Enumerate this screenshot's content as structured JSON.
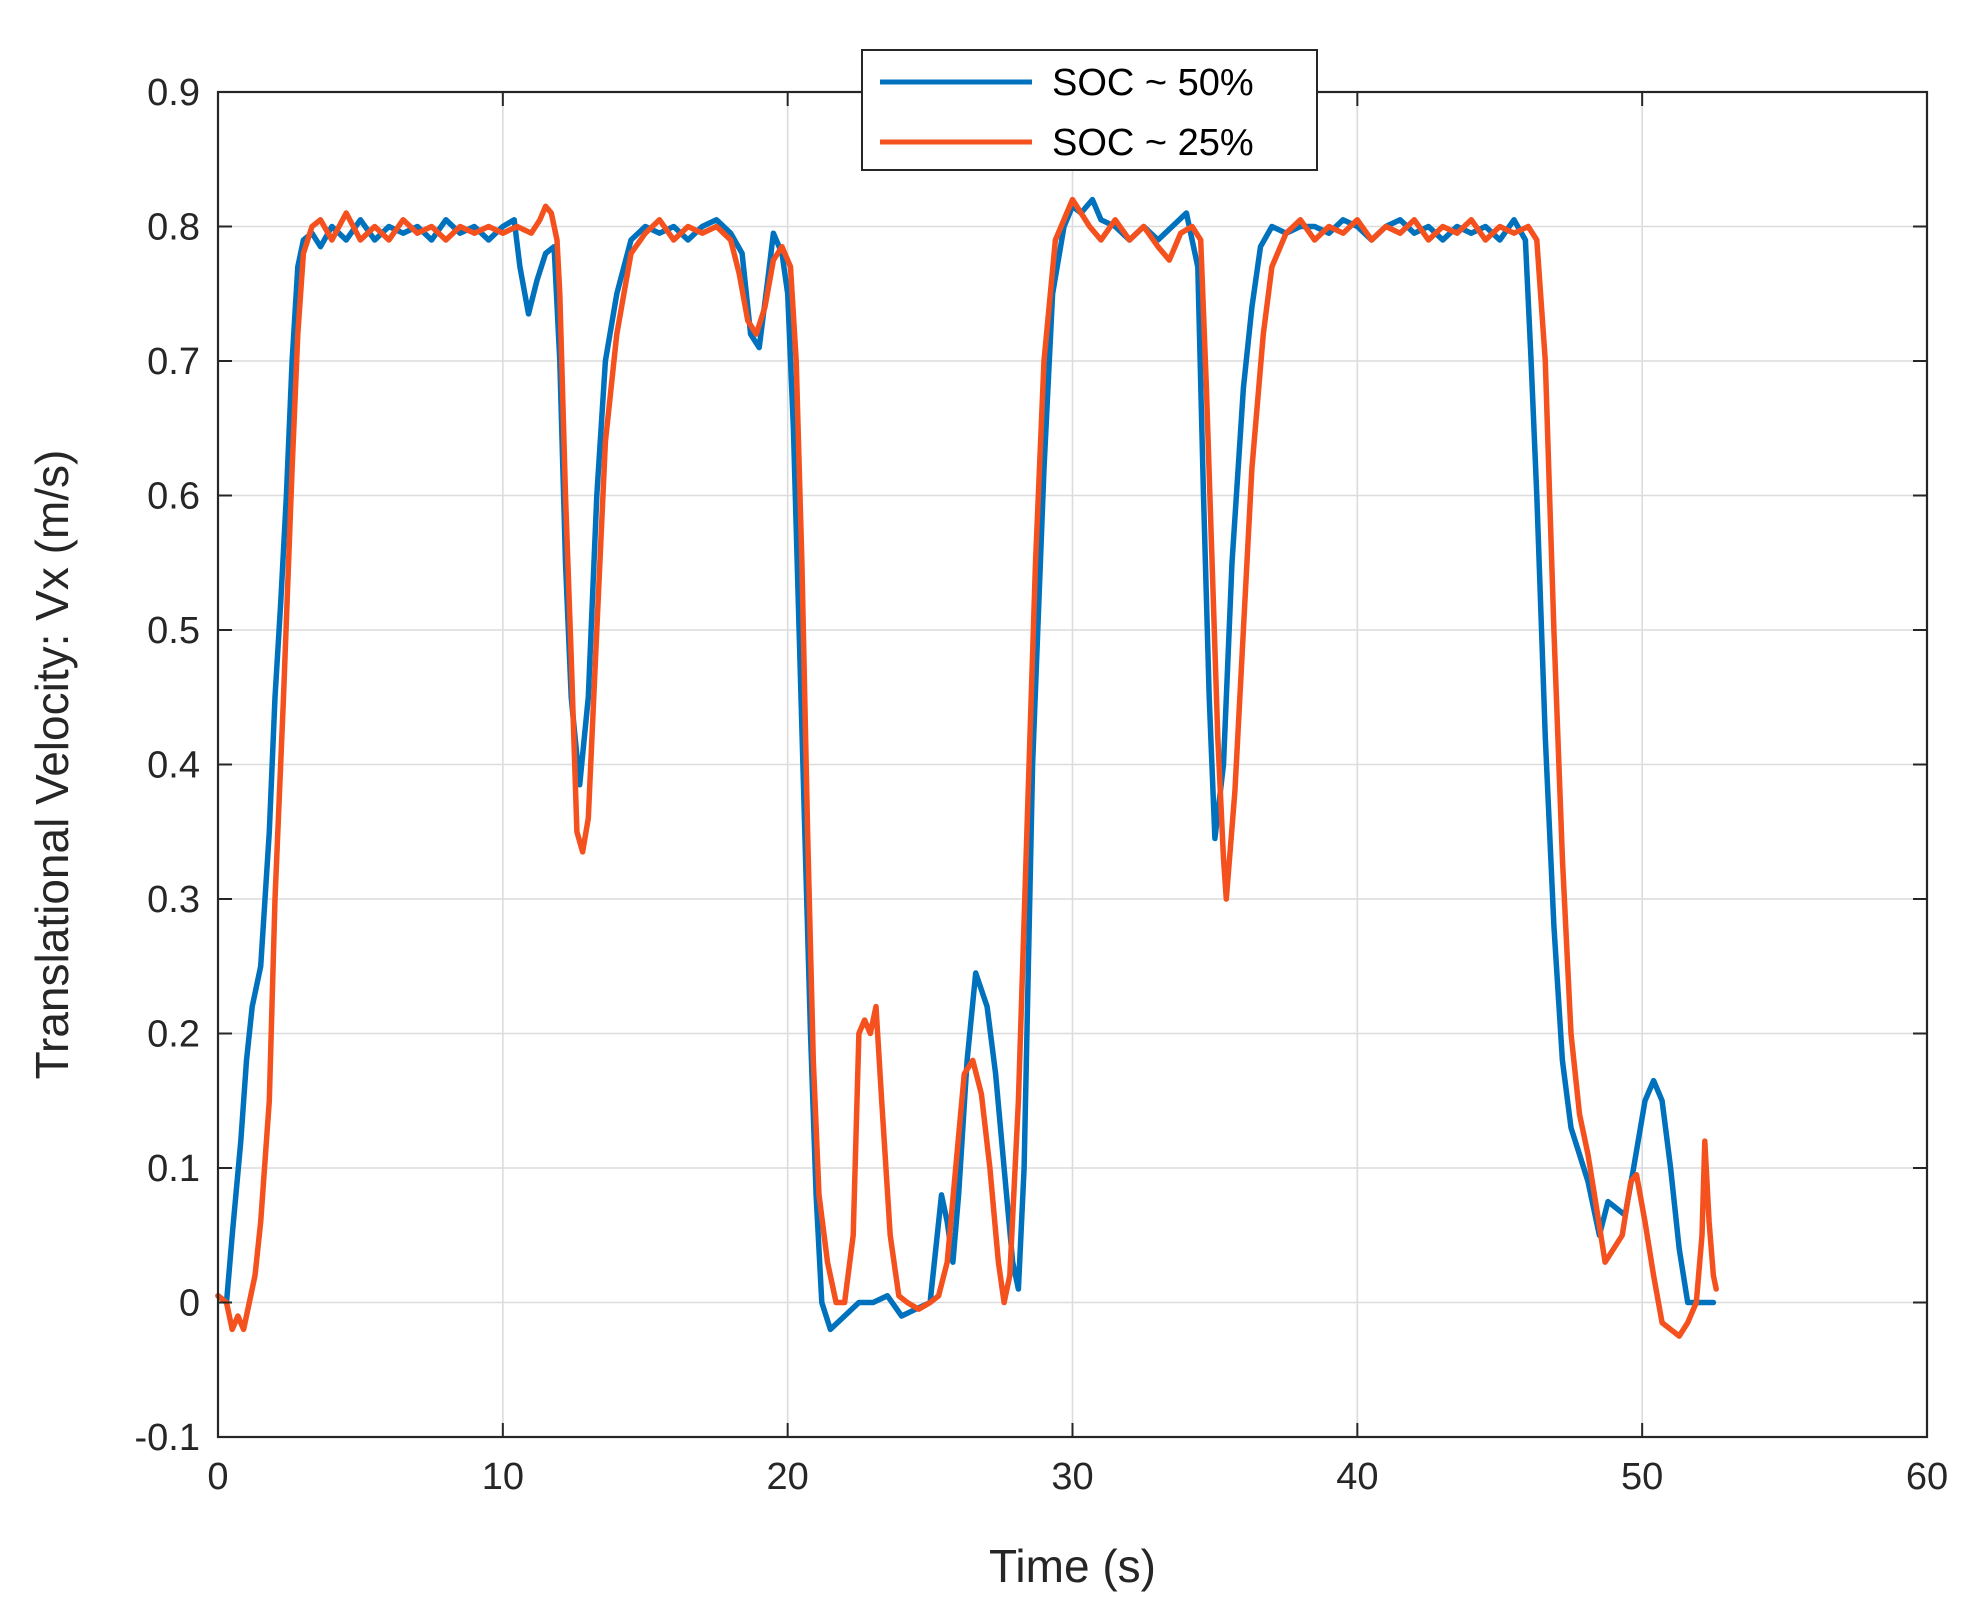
{
  "chart_data": {
    "type": "line",
    "title": "",
    "xlabel": "Time (s)",
    "ylabel": "Translational Velocity: Vx (m/s)",
    "xlim": [
      0,
      60
    ],
    "ylim": [
      -0.1,
      0.9
    ],
    "xticks": [
      0,
      10,
      20,
      30,
      40,
      50,
      60
    ],
    "yticks": [
      -0.1,
      0,
      0.1,
      0.2,
      0.3,
      0.4,
      0.5,
      0.6,
      0.7,
      0.8,
      0.9
    ],
    "xtick_labels": [
      "0",
      "10",
      "20",
      "30",
      "40",
      "50",
      "60"
    ],
    "ytick_labels": [
      "-0.1",
      "0",
      "0.1",
      "0.2",
      "0.3",
      "0.4",
      "0.5",
      "0.6",
      "0.7",
      "0.8",
      "0.9"
    ],
    "grid": true,
    "legend_position": "top-center",
    "series": [
      {
        "name": "SOC ~ 50%",
        "color": "#0072BD",
        "points": [
          [
            0.0,
            0.005
          ],
          [
            0.3,
            0.0
          ],
          [
            0.5,
            0.05
          ],
          [
            0.8,
            0.12
          ],
          [
            1.0,
            0.18
          ],
          [
            1.2,
            0.22
          ],
          [
            1.5,
            0.25
          ],
          [
            1.8,
            0.35
          ],
          [
            2.0,
            0.45
          ],
          [
            2.2,
            0.52
          ],
          [
            2.4,
            0.6
          ],
          [
            2.6,
            0.7
          ],
          [
            2.8,
            0.77
          ],
          [
            3.0,
            0.79
          ],
          [
            3.3,
            0.795
          ],
          [
            3.6,
            0.785
          ],
          [
            4.0,
            0.8
          ],
          [
            4.5,
            0.79
          ],
          [
            5.0,
            0.805
          ],
          [
            5.5,
            0.79
          ],
          [
            6.0,
            0.8
          ],
          [
            6.5,
            0.795
          ],
          [
            7.0,
            0.8
          ],
          [
            7.5,
            0.79
          ],
          [
            8.0,
            0.805
          ],
          [
            8.5,
            0.795
          ],
          [
            9.0,
            0.8
          ],
          [
            9.5,
            0.79
          ],
          [
            10.0,
            0.8
          ],
          [
            10.4,
            0.805
          ],
          [
            10.6,
            0.77
          ],
          [
            10.9,
            0.735
          ],
          [
            11.2,
            0.76
          ],
          [
            11.5,
            0.78
          ],
          [
            11.8,
            0.785
          ],
          [
            12.0,
            0.7
          ],
          [
            12.2,
            0.55
          ],
          [
            12.4,
            0.45
          ],
          [
            12.7,
            0.385
          ],
          [
            13.0,
            0.45
          ],
          [
            13.3,
            0.6
          ],
          [
            13.6,
            0.7
          ],
          [
            14.0,
            0.75
          ],
          [
            14.5,
            0.79
          ],
          [
            15.0,
            0.8
          ],
          [
            15.5,
            0.795
          ],
          [
            16.0,
            0.8
          ],
          [
            16.5,
            0.79
          ],
          [
            17.0,
            0.8
          ],
          [
            17.5,
            0.805
          ],
          [
            18.0,
            0.795
          ],
          [
            18.4,
            0.78
          ],
          [
            18.7,
            0.72
          ],
          [
            19.0,
            0.71
          ],
          [
            19.3,
            0.76
          ],
          [
            19.5,
            0.795
          ],
          [
            19.8,
            0.78
          ],
          [
            20.0,
            0.75
          ],
          [
            20.2,
            0.65
          ],
          [
            20.4,
            0.5
          ],
          [
            20.6,
            0.35
          ],
          [
            20.8,
            0.2
          ],
          [
            21.0,
            0.08
          ],
          [
            21.2,
            0.0
          ],
          [
            21.5,
            -0.02
          ],
          [
            22.0,
            -0.01
          ],
          [
            22.5,
            0.0
          ],
          [
            23.0,
            0.0
          ],
          [
            23.5,
            0.005
          ],
          [
            24.0,
            -0.01
          ],
          [
            24.5,
            -0.005
          ],
          [
            25.0,
            0.0
          ],
          [
            25.2,
            0.04
          ],
          [
            25.4,
            0.08
          ],
          [
            25.6,
            0.06
          ],
          [
            25.8,
            0.03
          ],
          [
            26.0,
            0.08
          ],
          [
            26.3,
            0.18
          ],
          [
            26.6,
            0.245
          ],
          [
            27.0,
            0.22
          ],
          [
            27.3,
            0.17
          ],
          [
            27.6,
            0.1
          ],
          [
            27.9,
            0.03
          ],
          [
            28.1,
            0.01
          ],
          [
            28.3,
            0.1
          ],
          [
            28.6,
            0.4
          ],
          [
            29.0,
            0.62
          ],
          [
            29.3,
            0.75
          ],
          [
            29.7,
            0.8
          ],
          [
            30.0,
            0.815
          ],
          [
            30.3,
            0.81
          ],
          [
            30.7,
            0.82
          ],
          [
            31.0,
            0.805
          ],
          [
            31.5,
            0.8
          ],
          [
            32.0,
            0.79
          ],
          [
            32.5,
            0.8
          ],
          [
            33.0,
            0.79
          ],
          [
            33.5,
            0.8
          ],
          [
            34.0,
            0.81
          ],
          [
            34.4,
            0.77
          ],
          [
            34.6,
            0.6
          ],
          [
            34.8,
            0.45
          ],
          [
            35.0,
            0.345
          ],
          [
            35.3,
            0.4
          ],
          [
            35.6,
            0.55
          ],
          [
            36.0,
            0.68
          ],
          [
            36.3,
            0.74
          ],
          [
            36.6,
            0.785
          ],
          [
            37.0,
            0.8
          ],
          [
            37.5,
            0.795
          ],
          [
            38.0,
            0.8
          ],
          [
            38.5,
            0.8
          ],
          [
            39.0,
            0.795
          ],
          [
            39.5,
            0.805
          ],
          [
            40.0,
            0.8
          ],
          [
            40.5,
            0.79
          ],
          [
            41.0,
            0.8
          ],
          [
            41.5,
            0.805
          ],
          [
            42.0,
            0.795
          ],
          [
            42.5,
            0.8
          ],
          [
            43.0,
            0.79
          ],
          [
            43.5,
            0.8
          ],
          [
            44.0,
            0.795
          ],
          [
            44.5,
            0.8
          ],
          [
            45.0,
            0.79
          ],
          [
            45.5,
            0.805
          ],
          [
            45.9,
            0.79
          ],
          [
            46.1,
            0.7
          ],
          [
            46.3,
            0.6
          ],
          [
            46.6,
            0.42
          ],
          [
            46.9,
            0.28
          ],
          [
            47.2,
            0.18
          ],
          [
            47.5,
            0.13
          ],
          [
            47.8,
            0.11
          ],
          [
            48.1,
            0.09
          ],
          [
            48.5,
            0.05
          ],
          [
            48.8,
            0.075
          ],
          [
            49.1,
            0.07
          ],
          [
            49.4,
            0.065
          ],
          [
            49.7,
            0.1
          ],
          [
            50.1,
            0.15
          ],
          [
            50.4,
            0.165
          ],
          [
            50.7,
            0.15
          ],
          [
            51.0,
            0.1
          ],
          [
            51.3,
            0.04
          ],
          [
            51.6,
            0.0
          ],
          [
            51.9,
            0.0
          ],
          [
            52.4,
            0.0
          ],
          [
            52.5,
            0.0
          ]
        ]
      },
      {
        "name": "SOC ~ 25%",
        "color": "#F4511E",
        "points": [
          [
            0.0,
            0.005
          ],
          [
            0.3,
            0.0
          ],
          [
            0.5,
            -0.02
          ],
          [
            0.7,
            -0.01
          ],
          [
            0.9,
            -0.02
          ],
          [
            1.1,
            0.0
          ],
          [
            1.3,
            0.02
          ],
          [
            1.5,
            0.06
          ],
          [
            1.8,
            0.15
          ],
          [
            2.0,
            0.3
          ],
          [
            2.3,
            0.45
          ],
          [
            2.6,
            0.62
          ],
          [
            2.8,
            0.72
          ],
          [
            3.0,
            0.78
          ],
          [
            3.3,
            0.8
          ],
          [
            3.6,
            0.805
          ],
          [
            4.0,
            0.79
          ],
          [
            4.5,
            0.81
          ],
          [
            5.0,
            0.79
          ],
          [
            5.5,
            0.8
          ],
          [
            6.0,
            0.79
          ],
          [
            6.5,
            0.805
          ],
          [
            7.0,
            0.795
          ],
          [
            7.5,
            0.8
          ],
          [
            8.0,
            0.79
          ],
          [
            8.5,
            0.8
          ],
          [
            9.0,
            0.795
          ],
          [
            9.5,
            0.8
          ],
          [
            10.0,
            0.795
          ],
          [
            10.5,
            0.8
          ],
          [
            11.0,
            0.795
          ],
          [
            11.3,
            0.805
          ],
          [
            11.5,
            0.815
          ],
          [
            11.7,
            0.81
          ],
          [
            11.9,
            0.79
          ],
          [
            12.0,
            0.75
          ],
          [
            12.2,
            0.6
          ],
          [
            12.4,
            0.48
          ],
          [
            12.6,
            0.35
          ],
          [
            12.8,
            0.335
          ],
          [
            13.0,
            0.36
          ],
          [
            13.3,
            0.5
          ],
          [
            13.6,
            0.64
          ],
          [
            14.0,
            0.72
          ],
          [
            14.5,
            0.78
          ],
          [
            15.0,
            0.795
          ],
          [
            15.5,
            0.805
          ],
          [
            16.0,
            0.79
          ],
          [
            16.5,
            0.8
          ],
          [
            17.0,
            0.795
          ],
          [
            17.5,
            0.8
          ],
          [
            18.0,
            0.79
          ],
          [
            18.3,
            0.765
          ],
          [
            18.6,
            0.73
          ],
          [
            18.9,
            0.72
          ],
          [
            19.2,
            0.74
          ],
          [
            19.5,
            0.775
          ],
          [
            19.8,
            0.785
          ],
          [
            20.1,
            0.77
          ],
          [
            20.3,
            0.7
          ],
          [
            20.5,
            0.55
          ],
          [
            20.7,
            0.35
          ],
          [
            20.9,
            0.18
          ],
          [
            21.1,
            0.08
          ],
          [
            21.4,
            0.03
          ],
          [
            21.7,
            0.0
          ],
          [
            22.0,
            0.0
          ],
          [
            22.3,
            0.05
          ],
          [
            22.5,
            0.2
          ],
          [
            22.7,
            0.21
          ],
          [
            22.9,
            0.2
          ],
          [
            23.1,
            0.22
          ],
          [
            23.3,
            0.15
          ],
          [
            23.6,
            0.05
          ],
          [
            23.9,
            0.005
          ],
          [
            24.2,
            0.0
          ],
          [
            24.6,
            -0.005
          ],
          [
            25.0,
            0.0
          ],
          [
            25.3,
            0.005
          ],
          [
            25.6,
            0.03
          ],
          [
            25.9,
            0.1
          ],
          [
            26.2,
            0.17
          ],
          [
            26.5,
            0.18
          ],
          [
            26.8,
            0.155
          ],
          [
            27.1,
            0.1
          ],
          [
            27.4,
            0.03
          ],
          [
            27.6,
            0.0
          ],
          [
            27.8,
            0.02
          ],
          [
            28.1,
            0.15
          ],
          [
            28.4,
            0.35
          ],
          [
            28.7,
            0.55
          ],
          [
            29.0,
            0.7
          ],
          [
            29.4,
            0.79
          ],
          [
            29.8,
            0.81
          ],
          [
            30.0,
            0.82
          ],
          [
            30.3,
            0.81
          ],
          [
            30.6,
            0.8
          ],
          [
            31.0,
            0.79
          ],
          [
            31.5,
            0.805
          ],
          [
            32.0,
            0.79
          ],
          [
            32.5,
            0.8
          ],
          [
            33.0,
            0.785
          ],
          [
            33.4,
            0.775
          ],
          [
            33.8,
            0.795
          ],
          [
            34.2,
            0.8
          ],
          [
            34.5,
            0.79
          ],
          [
            34.7,
            0.68
          ],
          [
            34.9,
            0.55
          ],
          [
            35.1,
            0.42
          ],
          [
            35.3,
            0.33
          ],
          [
            35.4,
            0.3
          ],
          [
            35.7,
            0.38
          ],
          [
            36.0,
            0.5
          ],
          [
            36.3,
            0.62
          ],
          [
            36.7,
            0.72
          ],
          [
            37.0,
            0.77
          ],
          [
            37.5,
            0.795
          ],
          [
            38.0,
            0.805
          ],
          [
            38.5,
            0.79
          ],
          [
            39.0,
            0.8
          ],
          [
            39.5,
            0.795
          ],
          [
            40.0,
            0.805
          ],
          [
            40.5,
            0.79
          ],
          [
            41.0,
            0.8
          ],
          [
            41.5,
            0.795
          ],
          [
            42.0,
            0.805
          ],
          [
            42.5,
            0.79
          ],
          [
            43.0,
            0.8
          ],
          [
            43.5,
            0.795
          ],
          [
            44.0,
            0.805
          ],
          [
            44.5,
            0.79
          ],
          [
            45.0,
            0.8
          ],
          [
            45.5,
            0.795
          ],
          [
            46.0,
            0.8
          ],
          [
            46.3,
            0.79
          ],
          [
            46.6,
            0.7
          ],
          [
            46.9,
            0.5
          ],
          [
            47.2,
            0.33
          ],
          [
            47.5,
            0.2
          ],
          [
            47.8,
            0.14
          ],
          [
            48.1,
            0.11
          ],
          [
            48.4,
            0.07
          ],
          [
            48.7,
            0.03
          ],
          [
            49.0,
            0.04
          ],
          [
            49.3,
            0.05
          ],
          [
            49.6,
            0.09
          ],
          [
            49.8,
            0.095
          ],
          [
            50.1,
            0.06
          ],
          [
            50.4,
            0.02
          ],
          [
            50.7,
            -0.015
          ],
          [
            51.0,
            -0.02
          ],
          [
            51.3,
            -0.025
          ],
          [
            51.6,
            -0.015
          ],
          [
            51.9,
            0.0
          ],
          [
            52.1,
            0.05
          ],
          [
            52.2,
            0.12
          ],
          [
            52.35,
            0.06
          ],
          [
            52.5,
            0.02
          ],
          [
            52.6,
            0.01
          ]
        ]
      }
    ]
  }
}
